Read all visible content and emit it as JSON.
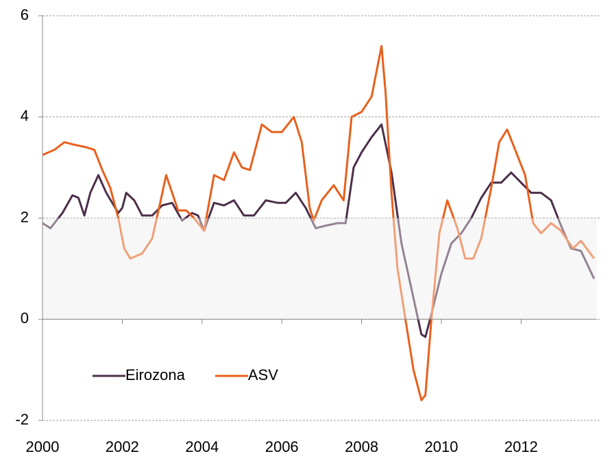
{
  "chart_data": {
    "type": "line",
    "xlim": [
      2000,
      2013.9
    ],
    "xticks": [
      2000,
      2002,
      2004,
      2006,
      2008,
      2010,
      2012
    ],
    "ylim": [
      -2,
      6
    ],
    "yticks": [
      -2,
      0,
      2,
      4,
      6
    ],
    "grid": true,
    "shaded_band": [
      0,
      2
    ],
    "band_color": "#f2f2f2",
    "legend": "lower left",
    "series": [
      {
        "name": "Eirozona",
        "color": "#4b2f4a",
        "x": [
          2000.0,
          2000.2,
          2000.5,
          2000.75,
          2000.9,
          2001.05,
          2001.2,
          2001.4,
          2001.6,
          2001.9,
          2002.0,
          2002.1,
          2002.3,
          2002.5,
          2002.75,
          2003.0,
          2003.25,
          2003.5,
          2003.75,
          2003.9,
          2004.05,
          2004.3,
          2004.55,
          2004.8,
          2005.05,
          2005.3,
          2005.6,
          2005.9,
          2006.1,
          2006.35,
          2006.6,
          2006.85,
          2007.1,
          2007.4,
          2007.6,
          2007.8,
          2008.0,
          2008.25,
          2008.5,
          2008.75,
          2009.0,
          2009.25,
          2009.5,
          2009.6,
          2009.75,
          2010.0,
          2010.25,
          2010.5,
          2010.75,
          2011.0,
          2011.25,
          2011.5,
          2011.75,
          2012.0,
          2012.25,
          2012.5,
          2012.75,
          2013.0,
          2013.25,
          2013.5,
          2013.83
        ],
        "values": [
          1.9,
          1.8,
          2.1,
          2.45,
          2.4,
          2.05,
          2.5,
          2.85,
          2.5,
          2.1,
          2.2,
          2.5,
          2.35,
          2.05,
          2.05,
          2.25,
          2.3,
          1.95,
          2.1,
          2.05,
          1.75,
          2.3,
          2.25,
          2.35,
          2.05,
          2.05,
          2.35,
          2.3,
          2.3,
          2.5,
          2.2,
          1.8,
          1.85,
          1.9,
          1.9,
          3.0,
          3.3,
          3.6,
          3.85,
          2.9,
          1.5,
          0.6,
          -0.3,
          -0.35,
          0.1,
          0.9,
          1.5,
          1.7,
          2.0,
          2.4,
          2.7,
          2.7,
          2.9,
          2.7,
          2.5,
          2.5,
          2.35,
          1.85,
          1.4,
          1.35,
          0.8
        ]
      },
      {
        "name": "ASV",
        "color": "#e8601c",
        "x": [
          2000.0,
          2000.3,
          2000.55,
          2000.8,
          2001.1,
          2001.3,
          2001.5,
          2001.7,
          2001.9,
          2002.05,
          2002.2,
          2002.5,
          2002.75,
          2002.95,
          2003.1,
          2003.25,
          2003.4,
          2003.6,
          2003.8,
          2004.05,
          2004.3,
          2004.55,
          2004.8,
          2005.0,
          2005.2,
          2005.5,
          2005.75,
          2006.0,
          2006.3,
          2006.5,
          2006.7,
          2006.8,
          2007.0,
          2007.3,
          2007.55,
          2007.75,
          2008.0,
          2008.25,
          2008.5,
          2008.6,
          2008.75,
          2008.9,
          2009.1,
          2009.3,
          2009.5,
          2009.6,
          2009.75,
          2009.95,
          2010.15,
          2010.4,
          2010.6,
          2010.8,
          2011.0,
          2011.25,
          2011.45,
          2011.65,
          2011.85,
          2012.1,
          2012.3,
          2012.5,
          2012.75,
          2013.0,
          2013.3,
          2013.5,
          2013.83
        ],
        "values": [
          3.25,
          3.35,
          3.5,
          3.45,
          3.4,
          3.35,
          2.95,
          2.6,
          2.0,
          1.4,
          1.2,
          1.3,
          1.6,
          2.3,
          2.85,
          2.5,
          2.15,
          2.15,
          2.0,
          1.75,
          2.85,
          2.75,
          3.3,
          3.0,
          2.95,
          3.85,
          3.7,
          3.7,
          4.0,
          3.5,
          2.2,
          1.95,
          2.35,
          2.65,
          2.35,
          4.0,
          4.1,
          4.4,
          5.4,
          4.5,
          2.5,
          1.0,
          0.0,
          -1.0,
          -1.6,
          -1.5,
          0.0,
          1.7,
          2.35,
          1.8,
          1.2,
          1.2,
          1.6,
          2.6,
          3.5,
          3.75,
          3.35,
          2.85,
          1.9,
          1.7,
          1.9,
          1.75,
          1.4,
          1.55,
          1.2
        ]
      }
    ]
  }
}
